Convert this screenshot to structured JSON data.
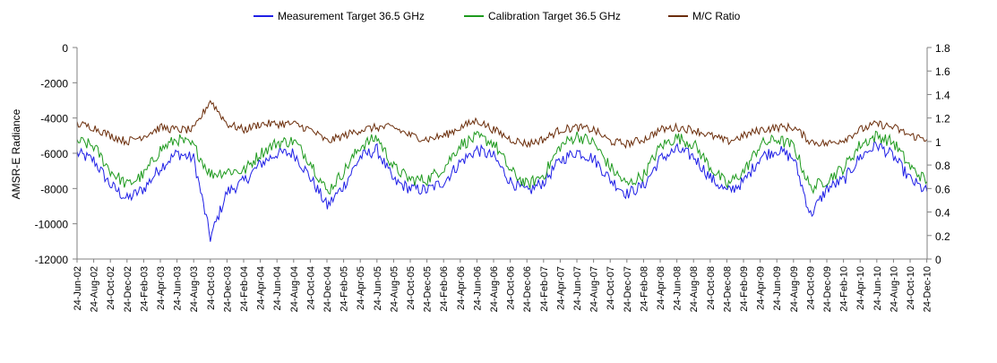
{
  "chart_data": {
    "type": "line",
    "title": "",
    "xlabel": "",
    "ylabel": "AMSR-E Radiance",
    "y2label": "",
    "ylim": [
      -12000,
      0
    ],
    "y2lim": [
      0,
      1.8
    ],
    "grid": false,
    "legend_position": "top",
    "x_range": [
      "24-Jun-02",
      "24-Dec-10"
    ],
    "x_tick_labels": [
      "24-Jun-02",
      "24-Aug-02",
      "24-Oct-02",
      "24-Dec-02",
      "24-Feb-03",
      "24-Apr-03",
      "24-Jun-03",
      "24-Aug-03",
      "24-Oct-03",
      "24-Dec-03",
      "24-Feb-04",
      "24-Apr-04",
      "24-Jun-04",
      "24-Aug-04",
      "24-Oct-04",
      "24-Dec-04",
      "24-Feb-05",
      "24-Apr-05",
      "24-Jun-05",
      "24-Aug-05",
      "24-Oct-05",
      "24-Dec-05",
      "24-Feb-06",
      "24-Apr-06",
      "24-Jun-06",
      "24-Aug-06",
      "24-Oct-06",
      "24-Dec-06",
      "24-Feb-07",
      "24-Apr-07",
      "24-Jun-07",
      "24-Aug-07",
      "24-Oct-07",
      "24-Dec-07",
      "24-Feb-08",
      "24-Apr-08",
      "24-Jun-08",
      "24-Aug-08",
      "24-Oct-08",
      "24-Dec-08",
      "24-Feb-09",
      "24-Apr-09",
      "24-Jun-09",
      "24-Aug-09",
      "24-Oct-09",
      "24-Dec-09",
      "24-Feb-10",
      "24-Apr-10",
      "24-Jun-10",
      "24-Aug-10",
      "24-Oct-10",
      "24-Dec-10"
    ],
    "y_ticks": [
      "0",
      "-2000",
      "-4000",
      "-6000",
      "-8000",
      "-10000",
      "-12000"
    ],
    "y2_ticks": [
      "1.8",
      "1.6",
      "1.4",
      "1.2",
      "1",
      "0.8",
      "0.6",
      "0.4",
      "0.2",
      "0"
    ],
    "series": [
      {
        "name": "Measurement Target 36.5 GHz",
        "color": "#1f1fe6",
        "axis": "left",
        "x": [
          "2002-06-24",
          "2002-08-24",
          "2002-10-24",
          "2002-12-24",
          "2003-02-24",
          "2003-04-24",
          "2003-06-24",
          "2003-08-24",
          "2003-10-24",
          "2003-12-24",
          "2004-02-24",
          "2004-04-24",
          "2004-06-24",
          "2004-08-24",
          "2004-10-24",
          "2004-12-24",
          "2005-02-24",
          "2005-04-24",
          "2005-06-24",
          "2005-08-24",
          "2005-10-24",
          "2005-12-24",
          "2006-02-24",
          "2006-04-24",
          "2006-06-24",
          "2006-08-24",
          "2006-10-24",
          "2006-12-24",
          "2007-02-24",
          "2007-04-24",
          "2007-06-24",
          "2007-08-24",
          "2007-10-24",
          "2007-12-24",
          "2008-02-24",
          "2008-04-24",
          "2008-06-24",
          "2008-08-24",
          "2008-10-24",
          "2008-12-24",
          "2009-02-24",
          "2009-04-24",
          "2009-06-24",
          "2009-08-24",
          "2009-10-24",
          "2009-12-24",
          "2010-02-24",
          "2010-04-24",
          "2010-06-24",
          "2010-08-24",
          "2010-10-24",
          "2010-12-24"
        ],
        "values": [
          -6000,
          -6400,
          -7800,
          -8600,
          -8000,
          -6800,
          -6000,
          -6300,
          -10800,
          -8200,
          -7600,
          -6600,
          -6000,
          -6000,
          -7400,
          -9000,
          -7800,
          -6200,
          -5800,
          -7600,
          -8000,
          -8100,
          -7600,
          -6500,
          -5800,
          -6200,
          -7600,
          -8200,
          -7600,
          -6400,
          -5900,
          -6300,
          -7500,
          -8300,
          -7800,
          -6300,
          -5800,
          -6200,
          -7400,
          -8200,
          -7600,
          -6200,
          -5800,
          -6300,
          -9500,
          -8000,
          -7500,
          -6200,
          -5500,
          -6200,
          -7500,
          -8200
        ]
      },
      {
        "name": "Calibration Target 36.5 GHz",
        "color": "#1e9a1e",
        "axis": "left",
        "x": [
          "2002-06-24",
          "2002-08-24",
          "2002-10-24",
          "2002-12-24",
          "2003-02-24",
          "2003-04-24",
          "2003-06-24",
          "2003-08-24",
          "2003-10-24",
          "2003-12-24",
          "2004-02-24",
          "2004-04-24",
          "2004-06-24",
          "2004-08-24",
          "2004-10-24",
          "2004-12-24",
          "2005-02-24",
          "2005-04-24",
          "2005-06-24",
          "2005-08-24",
          "2005-10-24",
          "2005-12-24",
          "2006-02-24",
          "2006-04-24",
          "2006-06-24",
          "2006-08-24",
          "2006-10-24",
          "2006-12-24",
          "2007-02-24",
          "2007-04-24",
          "2007-06-24",
          "2007-08-24",
          "2007-10-24",
          "2007-12-24",
          "2008-02-24",
          "2008-04-24",
          "2008-06-24",
          "2008-08-24",
          "2008-10-24",
          "2008-12-24",
          "2009-02-24",
          "2009-04-24",
          "2009-06-24",
          "2009-08-24",
          "2009-10-24",
          "2009-12-24",
          "2010-02-24",
          "2010-04-24",
          "2010-06-24",
          "2010-08-24",
          "2010-10-24",
          "2010-12-24"
        ],
        "values": [
          -5300,
          -5600,
          -7000,
          -7800,
          -7200,
          -5800,
          -5200,
          -5600,
          -7200,
          -7000,
          -7000,
          -6000,
          -5400,
          -5300,
          -6500,
          -8200,
          -7000,
          -5600,
          -5100,
          -6800,
          -7500,
          -7500,
          -6800,
          -5500,
          -5100,
          -5400,
          -7000,
          -7800,
          -7200,
          -5600,
          -5000,
          -5400,
          -6800,
          -7800,
          -7200,
          -5600,
          -5100,
          -5500,
          -6800,
          -7800,
          -7000,
          -5500,
          -5200,
          -5600,
          -8000,
          -7500,
          -6800,
          -5500,
          -5000,
          -5400,
          -6800,
          -7600
        ]
      },
      {
        "name": "M/C Ratio",
        "color": "#6b2d0a",
        "axis": "right",
        "x": [
          "2002-06-24",
          "2002-08-24",
          "2002-10-24",
          "2002-12-24",
          "2003-02-24",
          "2003-04-24",
          "2003-06-24",
          "2003-08-24",
          "2003-10-24",
          "2003-12-24",
          "2004-02-24",
          "2004-04-24",
          "2004-06-24",
          "2004-08-24",
          "2004-10-24",
          "2004-12-24",
          "2005-02-24",
          "2005-04-24",
          "2005-06-24",
          "2005-08-24",
          "2005-10-24",
          "2005-12-24",
          "2006-02-24",
          "2006-04-24",
          "2006-06-24",
          "2006-08-24",
          "2006-10-24",
          "2006-12-24",
          "2007-02-24",
          "2007-04-24",
          "2007-06-24",
          "2007-08-24",
          "2007-10-24",
          "2007-12-24",
          "2008-02-24",
          "2008-04-24",
          "2008-06-24",
          "2008-08-24",
          "2008-10-24",
          "2008-12-24",
          "2009-02-24",
          "2009-04-24",
          "2009-06-24",
          "2009-08-24",
          "2009-10-24",
          "2009-12-24",
          "2010-02-24",
          "2010-04-24",
          "2010-06-24",
          "2010-08-24",
          "2010-10-24",
          "2010-12-24"
        ],
        "values": [
          1.15,
          1.12,
          1.05,
          1.0,
          1.05,
          1.12,
          1.1,
          1.1,
          1.35,
          1.15,
          1.1,
          1.15,
          1.15,
          1.15,
          1.1,
          1.0,
          1.05,
          1.1,
          1.12,
          1.12,
          1.05,
          1.02,
          1.05,
          1.12,
          1.18,
          1.1,
          1.02,
          0.98,
          1.02,
          1.1,
          1.12,
          1.1,
          1.0,
          0.98,
          1.02,
          1.1,
          1.12,
          1.1,
          1.05,
          1.0,
          1.05,
          1.1,
          1.12,
          1.12,
          1.0,
          0.98,
          1.02,
          1.1,
          1.15,
          1.12,
          1.05,
          1.02
        ]
      }
    ]
  }
}
